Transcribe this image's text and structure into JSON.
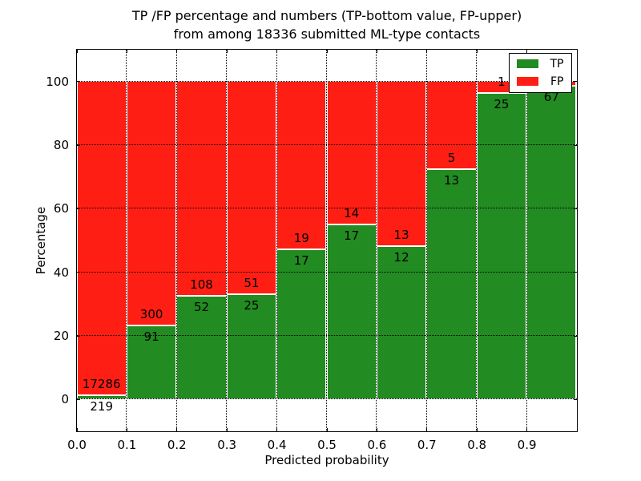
{
  "chart_data": {
    "type": "bar",
    "subtype": "stacked-percentage-histogram",
    "title_line1": "TP /FP percentage and numbers (TP-bottom value, FP-upper)",
    "title_line2": "from among 18336 submitted ML-type contacts",
    "xlabel": "Predicted probability",
    "ylabel": "Percentage",
    "xlim": [
      0.0,
      1.0
    ],
    "ylim": [
      -10,
      110
    ],
    "grid": "dotted",
    "total_submitted": 18336,
    "colors": {
      "tp": "#228B22",
      "fp": "#FF1E14"
    },
    "legend": {
      "position": "upper-right",
      "entries": [
        {
          "label": "TP",
          "color": "#228B22"
        },
        {
          "label": "FP",
          "color": "#FF1E14"
        }
      ]
    },
    "xticks": [
      {
        "value": 0.0,
        "label": "0.0"
      },
      {
        "value": 0.1,
        "label": "0.1"
      },
      {
        "value": 0.2,
        "label": "0.2"
      },
      {
        "value": 0.3,
        "label": "0.3"
      },
      {
        "value": 0.4,
        "label": "0.4"
      },
      {
        "value": 0.5,
        "label": "0.5"
      },
      {
        "value": 0.6,
        "label": "0.6"
      },
      {
        "value": 0.7,
        "label": "0.7"
      },
      {
        "value": 0.8,
        "label": "0.8"
      },
      {
        "value": 0.9,
        "label": "0.9"
      }
    ],
    "yticks": [
      {
        "value": 0,
        "label": "0"
      },
      {
        "value": 20,
        "label": "20"
      },
      {
        "value": 40,
        "label": "40"
      },
      {
        "value": 60,
        "label": "60"
      },
      {
        "value": 80,
        "label": "80"
      },
      {
        "value": 100,
        "label": "100"
      }
    ],
    "bins": [
      {
        "x0": 0.0,
        "x1": 0.1,
        "tp": 219,
        "fp": 17286,
        "tp_label": "219",
        "fp_label": "17286"
      },
      {
        "x0": 0.1,
        "x1": 0.2,
        "tp": 91,
        "fp": 300,
        "tp_label": "91",
        "fp_label": "300"
      },
      {
        "x0": 0.2,
        "x1": 0.3,
        "tp": 52,
        "fp": 108,
        "tp_label": "52",
        "fp_label": "108"
      },
      {
        "x0": 0.3,
        "x1": 0.4,
        "tp": 25,
        "fp": 51,
        "tp_label": "25",
        "fp_label": "51"
      },
      {
        "x0": 0.4,
        "x1": 0.5,
        "tp": 17,
        "fp": 19,
        "tp_label": "17",
        "fp_label": "19"
      },
      {
        "x0": 0.5,
        "x1": 0.6,
        "tp": 17,
        "fp": 14,
        "tp_label": "17",
        "fp_label": "14"
      },
      {
        "x0": 0.6,
        "x1": 0.7,
        "tp": 12,
        "fp": 13,
        "tp_label": "12",
        "fp_label": "13"
      },
      {
        "x0": 0.7,
        "x1": 0.8,
        "tp": 13,
        "fp": 5,
        "tp_label": "13",
        "fp_label": "5"
      },
      {
        "x0": 0.8,
        "x1": 0.9,
        "tp": 25,
        "fp": 1,
        "tp_label": "25",
        "fp_label": "1"
      },
      {
        "x0": 0.9,
        "x1": 1.0,
        "tp": 67,
        "fp": 1,
        "tp_label": "67",
        "fp_label": ""
      }
    ]
  }
}
